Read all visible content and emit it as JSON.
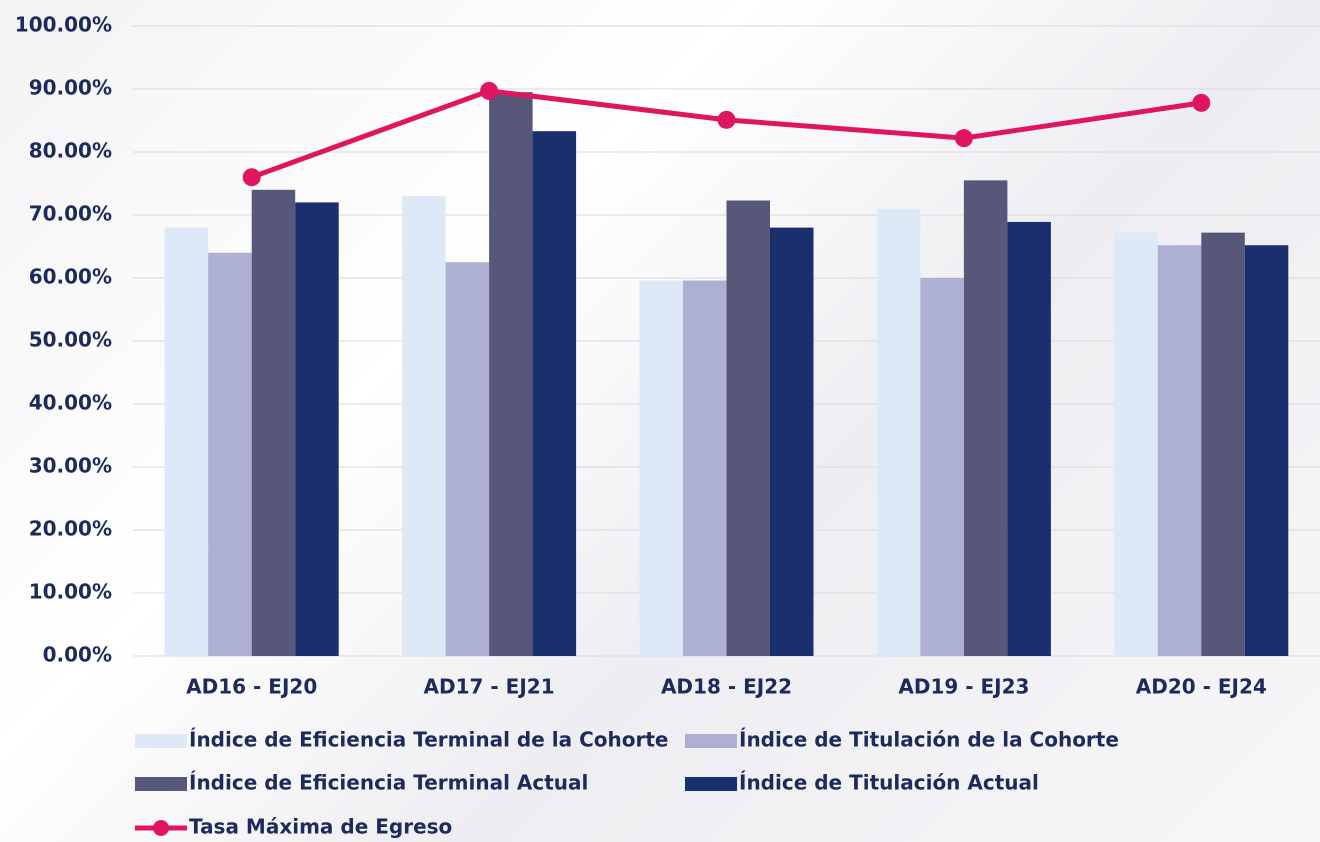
{
  "chart_data": {
    "type": "bar",
    "categories": [
      "AD16 - EJ20",
      "AD17 - EJ21",
      "AD18 - EJ22",
      "AD19 - EJ23",
      "AD20 - EJ24"
    ],
    "series": [
      {
        "name": "Índice de Eficiencia Terminal de la Cohorte",
        "type": "bar",
        "color": "#dde9f6",
        "values": [
          68,
          73,
          59.6,
          71,
          67.2
        ]
      },
      {
        "name": "Índice de Titulación de la Cohorte",
        "type": "bar",
        "color": "#aeb0d3",
        "values": [
          64,
          62.5,
          59.6,
          60,
          65.2
        ]
      },
      {
        "name": "Índice de Eficiencia Terminal Actual",
        "type": "bar",
        "color": "#57577a",
        "values": [
          74,
          89.5,
          72.3,
          75.5,
          67.2
        ]
      },
      {
        "name": "Índice de Titulación Actual",
        "type": "bar",
        "color": "#1a2f6e",
        "values": [
          72,
          83.3,
          68,
          68.9,
          65.2
        ]
      },
      {
        "name": "Tasa Máxima de Egreso",
        "type": "line",
        "color": "#e0155f",
        "values": [
          76,
          89.7,
          85.1,
          82.2,
          87.8
        ]
      }
    ],
    "ylim": [
      0,
      100
    ],
    "yticks": [
      {
        "value": 0,
        "label": "0.00%"
      },
      {
        "value": 10,
        "label": "10.00%"
      },
      {
        "value": 20,
        "label": "20.00%"
      },
      {
        "value": 30,
        "label": "30.00%"
      },
      {
        "value": 40,
        "label": "40.00%"
      },
      {
        "value": 50,
        "label": "50.00%"
      },
      {
        "value": 60,
        "label": "60.00%"
      },
      {
        "value": 70,
        "label": "70.00%"
      },
      {
        "value": 80,
        "label": "80.00%"
      },
      {
        "value": 90,
        "label": "90.00%"
      },
      {
        "value": 100,
        "label": "100.00%"
      }
    ],
    "grid": true
  }
}
